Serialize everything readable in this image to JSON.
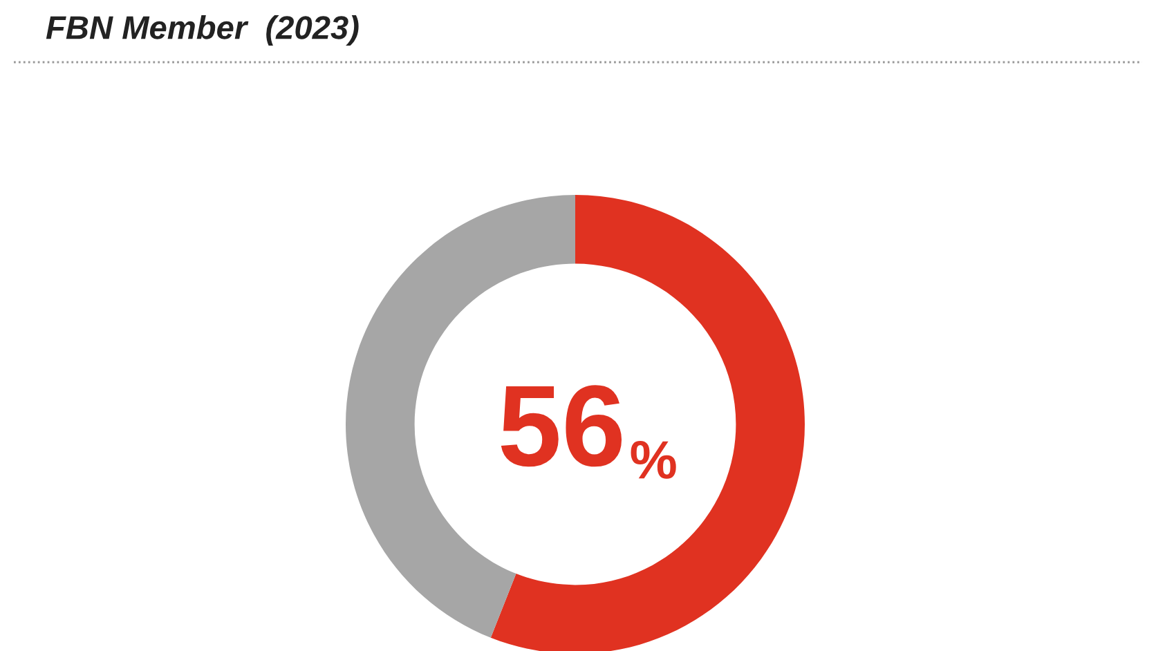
{
  "chart_data": {
    "type": "donut",
    "title": "FBN Member  (2023)",
    "categories": [
      null,
      null
    ],
    "values": [
      56,
      44
    ],
    "colors": [
      "#e03221",
      "#a6a6a6"
    ],
    "value_labels": [
      "56%",
      null
    ]
  }
}
